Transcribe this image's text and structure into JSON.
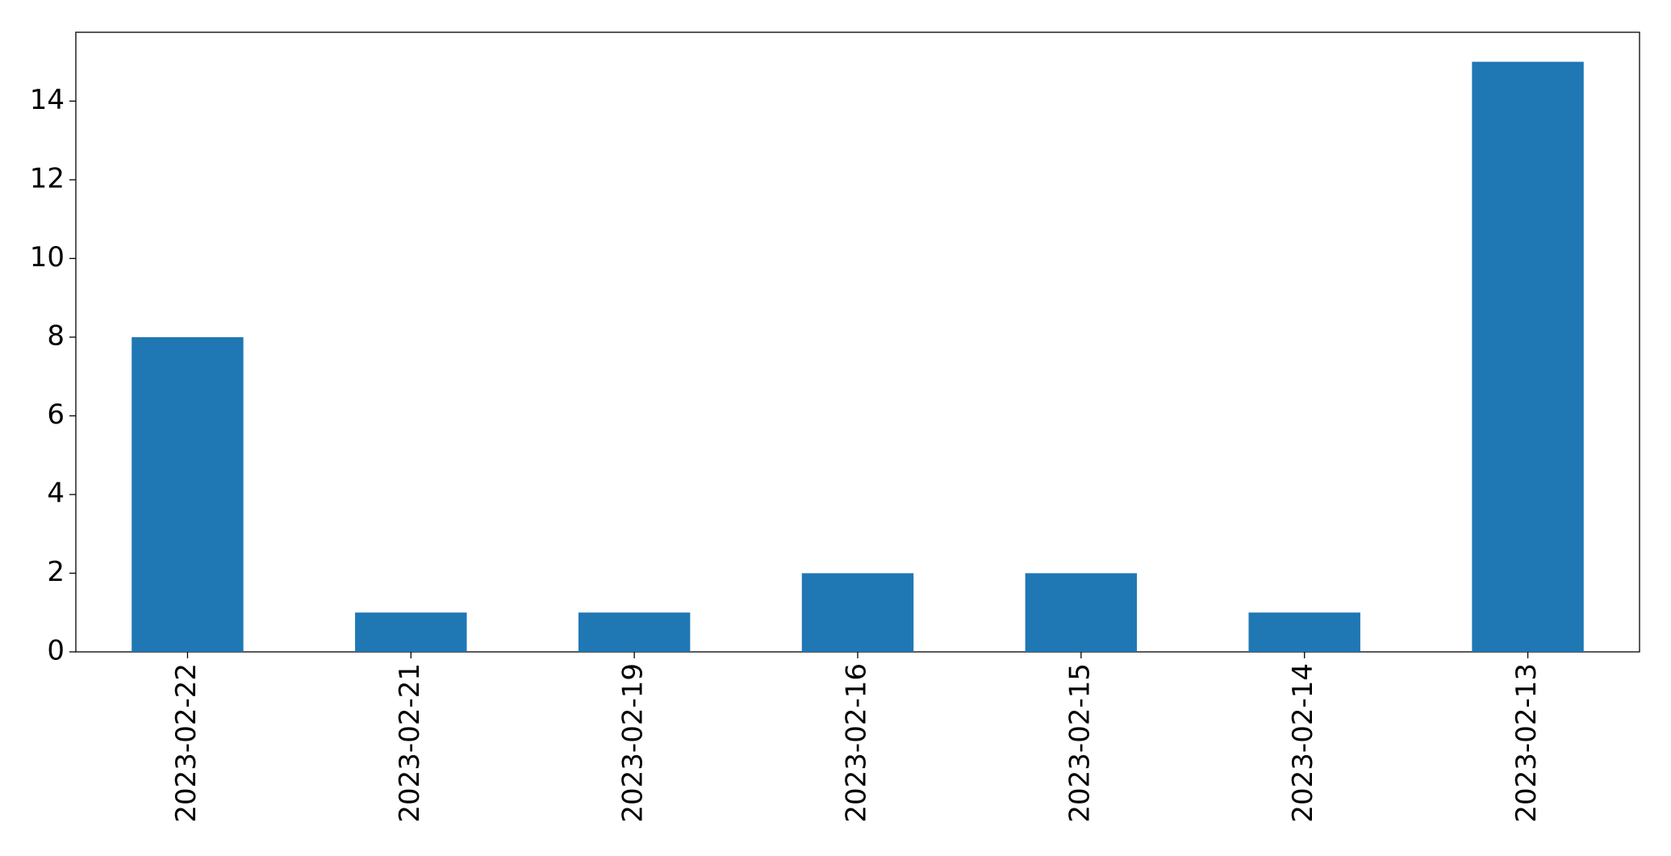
{
  "chart_data": {
    "type": "bar",
    "categories": [
      "2023-02-22",
      "2023-02-21",
      "2023-02-19",
      "2023-02-16",
      "2023-02-15",
      "2023-02-14",
      "2023-02-13"
    ],
    "values": [
      8,
      1,
      1,
      2,
      2,
      1,
      15
    ],
    "color": "#1f77b4",
    "ylim": [
      0,
      15.75
    ],
    "yticks": [
      0,
      2,
      4,
      6,
      8,
      10,
      12,
      14
    ],
    "grid": false
  }
}
